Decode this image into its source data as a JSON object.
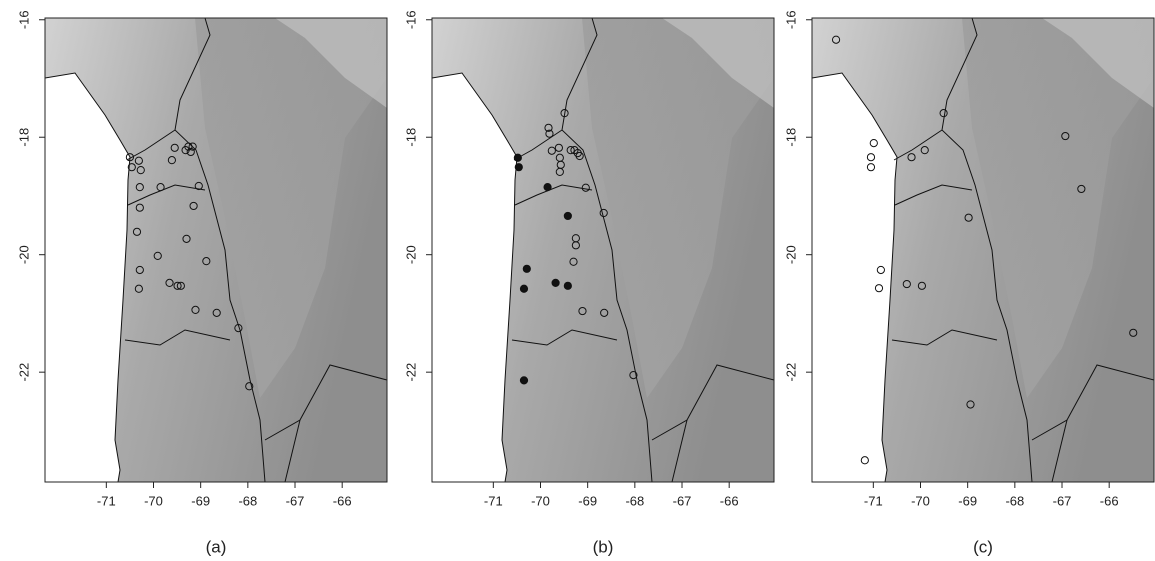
{
  "chart_data": [
    {
      "type": "scatter",
      "caption": "(a)",
      "xlim": [
        -72.3,
        -65.05
      ],
      "ylim": [
        -23.87,
        -15.97
      ],
      "xticks": [
        -71,
        -70,
        -69,
        -68,
        -67,
        -66
      ],
      "yticks": [
        -16,
        -18,
        -20,
        -22
      ],
      "series": [
        {
          "marker": "open",
          "color": "#111111",
          "x": [
            -70.5,
            -70.46,
            -70.31,
            -70.27,
            -70.29,
            -69.55,
            -69.61,
            -69.32,
            -69.26,
            -69.21,
            -69.17,
            -69.04,
            -69.85,
            -70.29,
            -69.15,
            -70.35,
            -69.3,
            -68.88,
            -70.29,
            -69.91,
            -70.31,
            -69.66,
            -69.49,
            -69.42,
            -69.11,
            -68.66,
            -68.2,
            -67.97
          ],
          "y": [
            -18.34,
            -18.51,
            -18.4,
            -18.56,
            -18.85,
            -18.18,
            -18.39,
            -18.22,
            -18.16,
            -18.25,
            -18.16,
            -18.83,
            -18.85,
            -19.2,
            -19.17,
            -19.61,
            -19.73,
            -20.11,
            -20.26,
            -20.02,
            -20.58,
            -20.48,
            -20.53,
            -20.53,
            -20.94,
            -20.99,
            -21.25,
            -22.24
          ]
        }
      ]
    },
    {
      "type": "scatter",
      "caption": "(b)",
      "xlim": [
        -72.3,
        -65.05
      ],
      "ylim": [
        -23.87,
        -15.97
      ],
      "xticks": [
        -71,
        -70,
        -69,
        -68,
        -67,
        -66
      ],
      "yticks": [
        -16,
        -18,
        -20,
        -22
      ],
      "series": [
        {
          "marker": "filled",
          "color": "#111111",
          "x": [
            -70.48,
            -70.46,
            -69.85,
            -69.42,
            -70.29,
            -70.35,
            -69.68,
            -69.42,
            -70.35
          ],
          "y": [
            -18.35,
            -18.51,
            -18.85,
            -19.34,
            -20.24,
            -20.58,
            -20.48,
            -20.53,
            -22.14
          ]
        },
        {
          "marker": "open",
          "color": "#111111",
          "x": [
            -69.83,
            -69.81,
            -69.49,
            -69.76,
            -69.61,
            -69.59,
            -69.57,
            -69.59,
            -69.36,
            -69.28,
            -69.21,
            -69.17,
            -69.04,
            -68.66,
            -69.25,
            -69.25,
            -69.3,
            -69.11,
            -68.65,
            -68.03
          ],
          "y": [
            -17.84,
            -17.94,
            -17.59,
            -18.23,
            -18.18,
            -18.35,
            -18.47,
            -18.59,
            -18.22,
            -18.22,
            -18.27,
            -18.32,
            -18.86,
            -19.29,
            -19.72,
            -19.84,
            -20.12,
            -20.96,
            -20.99,
            -22.05
          ]
        }
      ]
    },
    {
      "type": "scatter",
      "caption": "(c)",
      "xlim": [
        -72.3,
        -65.05
      ],
      "ylim": [
        -23.87,
        -15.97
      ],
      "xticks": [
        -71,
        -70,
        -69,
        -68,
        -67,
        -66
      ],
      "yticks": [
        -16,
        -18,
        -20,
        -22
      ],
      "series": [
        {
          "marker": "open",
          "color": "#111111",
          "x": [
            -71.79,
            -70.99,
            -71.05,
            -71.05,
            -70.84,
            -70.88,
            -70.29,
            -69.97,
            -70.19,
            -69.91,
            -69.51,
            -68.98,
            -68.94,
            -66.93,
            -66.59,
            -65.49,
            -71.18
          ],
          "y": [
            -16.34,
            -18.1,
            -18.34,
            -18.51,
            -20.26,
            -20.57,
            -20.5,
            -20.53,
            -18.34,
            -18.22,
            -17.59,
            -19.37,
            -22.55,
            -17.98,
            -18.88,
            -21.33,
            -23.5
          ]
        }
      ]
    }
  ]
}
